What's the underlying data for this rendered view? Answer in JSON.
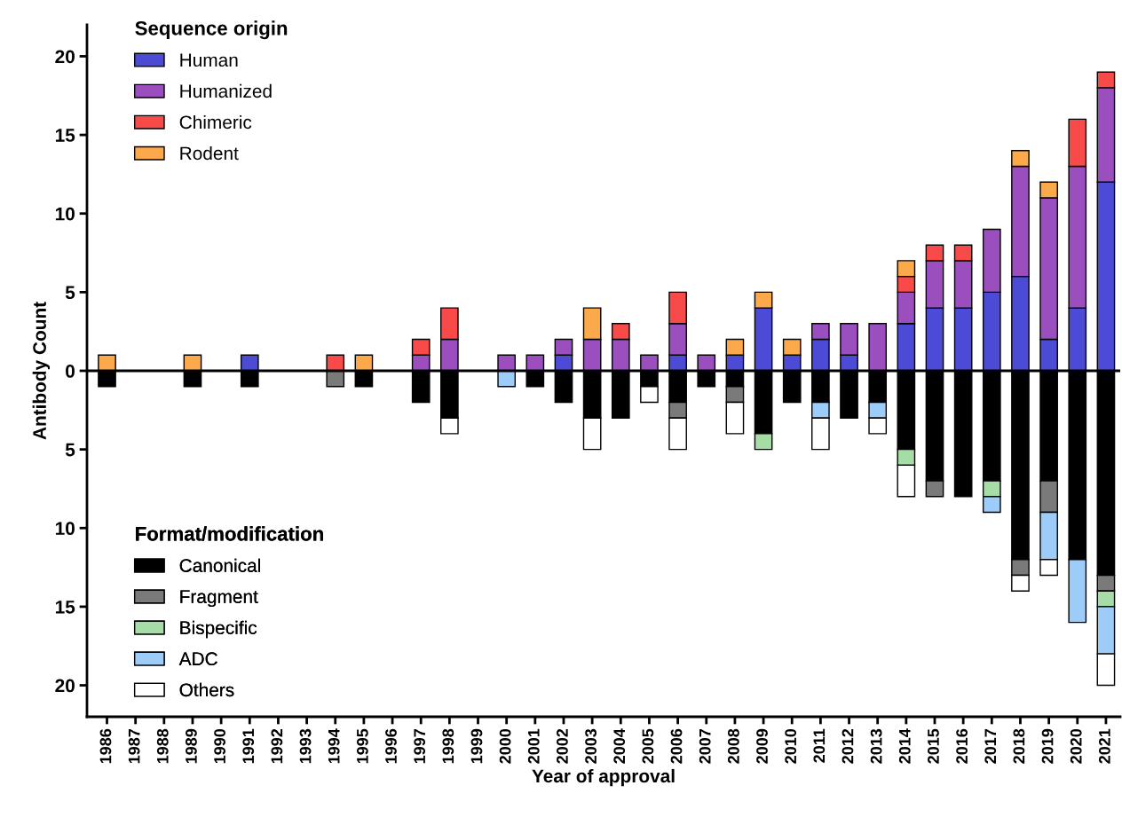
{
  "chart_data": {
    "type": "bar",
    "stacked": true,
    "xlabel": "Year of approval",
    "ylabel": "Antibody Count",
    "legend_title": [
      "Sequence origin",
      "Format/modification"
    ],
    "legend": "left",
    "grid": false,
    "categories": [
      "1986",
      "1987",
      "1988",
      "1989",
      "1990",
      "1991",
      "1992",
      "1993",
      "1994",
      "1995",
      "1996",
      "1997",
      "1998",
      "1999",
      "2000",
      "2001",
      "2002",
      "2003",
      "2004",
      "2005",
      "2006",
      "2007",
      "2008",
      "2009",
      "2010",
      "2011",
      "2012",
      "2013",
      "2014",
      "2015",
      "2016",
      "2017",
      "2018",
      "2019",
      "2020",
      "2021"
    ],
    "ylim": [
      -22,
      22
    ],
    "yticks": [
      {
        "value": -20,
        "label": "20"
      },
      {
        "value": -15,
        "label": "15"
      },
      {
        "value": -10,
        "label": "10"
      },
      {
        "value": -5,
        "label": "5"
      },
      0,
      5,
      10,
      15,
      20
    ],
    "ref_lines": [
      {
        "axis": "y",
        "value": 0,
        "color": "#000000"
      }
    ],
    "series": [
      {
        "name": "Human",
        "color": "#4b4bd6",
        "values": [
          null,
          null,
          null,
          null,
          null,
          1,
          null,
          null,
          null,
          null,
          null,
          null,
          null,
          null,
          null,
          null,
          1,
          null,
          null,
          null,
          1,
          null,
          1,
          4,
          1,
          2,
          1,
          null,
          3,
          4,
          4,
          5,
          6,
          2,
          4,
          12
        ]
      },
      {
        "name": "Humanized",
        "color": "#9b4fbf",
        "values": [
          null,
          null,
          null,
          null,
          null,
          null,
          null,
          null,
          null,
          null,
          null,
          1,
          2,
          null,
          1,
          1,
          1,
          2,
          2,
          1,
          2,
          1,
          null,
          null,
          null,
          1,
          2,
          3,
          2,
          3,
          3,
          4,
          7,
          9,
          9,
          6
        ]
      },
      {
        "name": "Chimeric",
        "color": "#f94a4a",
        "values": [
          null,
          null,
          null,
          null,
          null,
          null,
          null,
          null,
          1,
          null,
          null,
          1,
          2,
          null,
          null,
          null,
          null,
          null,
          1,
          null,
          2,
          null,
          null,
          null,
          null,
          null,
          null,
          null,
          1,
          1,
          1,
          null,
          null,
          null,
          3,
          1
        ]
      },
      {
        "name": "Rodent",
        "color": "#fba94a",
        "values": [
          1,
          null,
          null,
          1,
          null,
          null,
          null,
          null,
          null,
          1,
          null,
          null,
          null,
          null,
          null,
          null,
          null,
          2,
          null,
          null,
          null,
          null,
          1,
          1,
          1,
          null,
          null,
          null,
          1,
          null,
          null,
          null,
          1,
          1,
          null,
          null
        ]
      },
      {
        "name": "Canonical",
        "color": "#000000",
        "values": [
          -1,
          null,
          null,
          -1,
          null,
          -1,
          null,
          null,
          null,
          -1,
          null,
          -2,
          -3,
          null,
          null,
          -1,
          -2,
          -3,
          -3,
          -1,
          -2,
          -1,
          -1,
          -4,
          -2,
          -2,
          -3,
          -2,
          -5,
          -7,
          -8,
          -7,
          -12,
          -7,
          -12,
          -13
        ]
      },
      {
        "name": "Fragment",
        "color": "#7a7a7a",
        "values": [
          null,
          null,
          null,
          null,
          null,
          null,
          null,
          null,
          -1,
          null,
          null,
          null,
          null,
          null,
          null,
          null,
          null,
          null,
          null,
          null,
          -1,
          null,
          -1,
          null,
          null,
          null,
          null,
          null,
          null,
          -1,
          null,
          null,
          -1,
          -2,
          null,
          -1
        ]
      },
      {
        "name": "Bispecific",
        "color": "#a6dca6",
        "values": [
          null,
          null,
          null,
          null,
          null,
          null,
          null,
          null,
          null,
          null,
          null,
          null,
          null,
          null,
          null,
          null,
          null,
          null,
          null,
          null,
          null,
          null,
          null,
          -1,
          null,
          null,
          null,
          null,
          -1,
          null,
          null,
          -1,
          null,
          null,
          null,
          -1
        ]
      },
      {
        "name": "ADC",
        "color": "#9cccf7",
        "values": [
          null,
          null,
          null,
          null,
          null,
          null,
          null,
          null,
          null,
          null,
          null,
          null,
          null,
          null,
          -1,
          null,
          null,
          null,
          null,
          null,
          null,
          null,
          null,
          null,
          null,
          -1,
          null,
          -1,
          null,
          null,
          null,
          -1,
          null,
          -3,
          -4,
          -3
        ]
      },
      {
        "name": "Others",
        "color": "#ffffff",
        "values": [
          null,
          null,
          null,
          null,
          null,
          null,
          null,
          null,
          null,
          null,
          null,
          null,
          -1,
          null,
          null,
          null,
          null,
          -2,
          null,
          -1,
          -2,
          null,
          -2,
          null,
          null,
          -2,
          null,
          -1,
          -2,
          null,
          null,
          null,
          -1,
          -1,
          null,
          -2
        ]
      }
    ]
  }
}
